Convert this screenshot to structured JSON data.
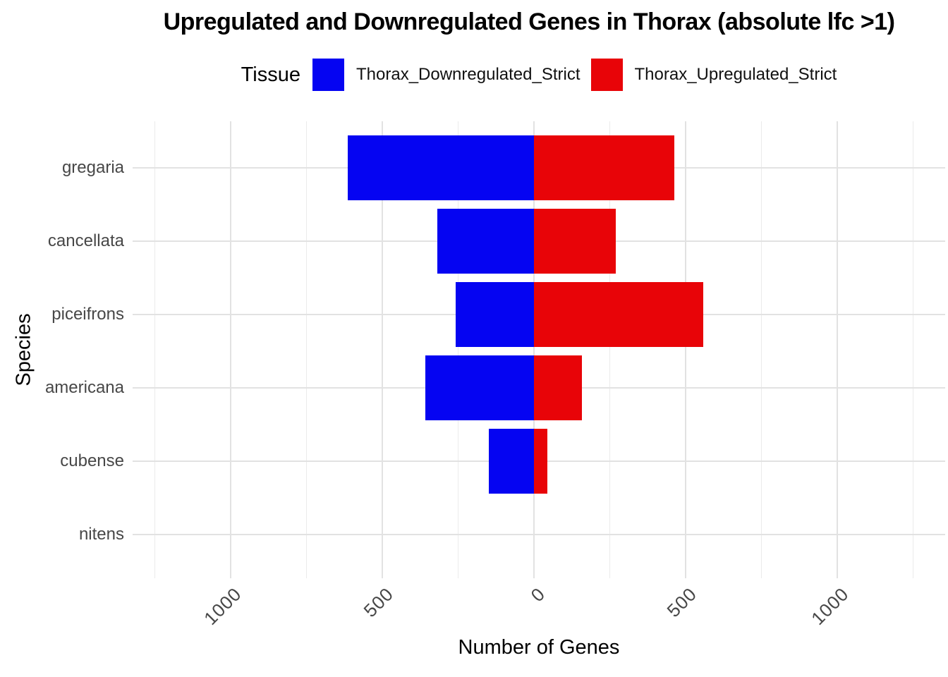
{
  "title": "Upregulated and Downregulated Genes in Thorax (absolute lfc >1)",
  "legend": {
    "title": "Tissue",
    "items": [
      {
        "label": "Thorax_Downregulated_Strict",
        "color": "#0504F2"
      },
      {
        "label": "Thorax_Upregulated_Strict",
        "color": "#E80408"
      }
    ]
  },
  "chart_data": {
    "type": "bar",
    "orientation": "horizontal_diverging",
    "title": "Upregulated and Downregulated Genes in Thorax (absolute lfc >1)",
    "xlabel": "Number of Genes",
    "ylabel": "Species",
    "categories": [
      "gregaria",
      "cancellata",
      "piceifrons",
      "americana",
      "cubense",
      "nitens"
    ],
    "series": [
      {
        "name": "Thorax_Downregulated_Strict",
        "color": "#0504F2",
        "direction": "negative",
        "values": [
          615,
          320,
          260,
          360,
          149,
          0
        ]
      },
      {
        "name": "Thorax_Upregulated_Strict",
        "color": "#E80408",
        "direction": "positive",
        "values": [
          461,
          268,
          557,
          157,
          44,
          0
        ]
      }
    ],
    "x_ticks": [
      {
        "value": -1000,
        "label": "1000"
      },
      {
        "value": -500,
        "label": "500"
      },
      {
        "value": 0,
        "label": "0"
      },
      {
        "value": 500,
        "label": "500"
      },
      {
        "value": 1000,
        "label": "1000"
      }
    ],
    "xlim": [
      -1324,
      1355
    ],
    "grid": {
      "minor_step": 250,
      "major_step": 500,
      "major_color": "#E2E2E2",
      "minor_color": "#EBEBEB"
    },
    "legend_position": "top"
  }
}
